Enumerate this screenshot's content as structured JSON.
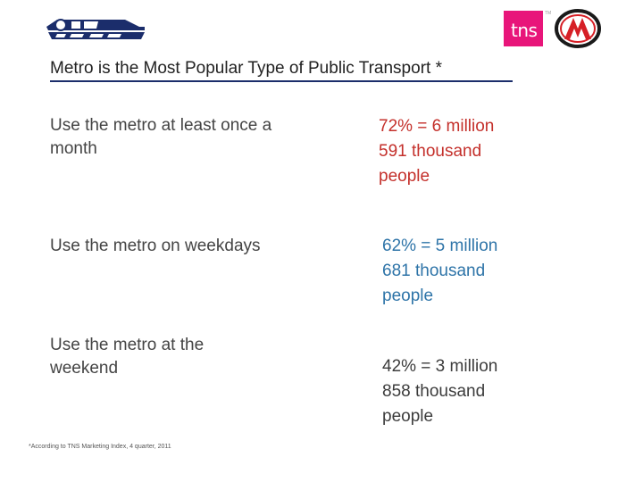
{
  "header": {
    "left_logo_icon": "cm-auto-logo-icon",
    "tns_logo": {
      "text": "tns",
      "color": "#e8157a",
      "trademark": "TM"
    },
    "metro_logo_icon": "moscow-metro-m-icon"
  },
  "title": "Metro is the Most Popular Type of Public Transport *",
  "rows": [
    {
      "label": "Use the metro at least once a month",
      "value_lines": [
        "72% = 6 million",
        "591 thousand",
        "people"
      ],
      "color": "#c4302b"
    },
    {
      "label": "Use the metro on weekdays",
      "value_lines": [
        "62% = 5 million",
        "681 thousand",
        "people"
      ],
      "color": "#2e74a8"
    },
    {
      "label": "Use the metro at the weekend",
      "value_lines": [
        "42% = 3 million",
        "858 thousand",
        "people"
      ],
      "color": "#3c3c3c"
    }
  ],
  "footnote": "*According to TNS Marketing Index, 4 quarter, 2011"
}
